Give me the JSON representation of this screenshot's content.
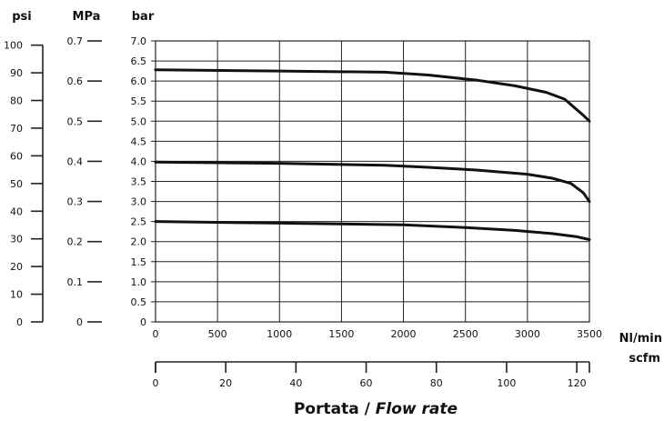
{
  "chart_data": {
    "type": "line",
    "title": "",
    "xlabel": "Portata /",
    "xlabel_italic": "Flow rate",
    "x_unit": "Nl/min",
    "x2_unit": "scfm",
    "y_unit_bar": "bar",
    "y_unit_mpa": "MPa",
    "y_unit_psi": "psi",
    "xlim": [
      0,
      3500
    ],
    "ylim": [
      0,
      7.0
    ],
    "x_ticks": [
      0,
      500,
      1000,
      1500,
      2000,
      2500,
      3000,
      3500
    ],
    "y_ticks": [
      "0",
      "0.5",
      "1.0",
      "1.5",
      "2.0",
      "2.5",
      "3.0",
      "3.5",
      "4.0",
      "4.5",
      "5.0",
      "5.5",
      "6.0",
      "6.5",
      "7.0"
    ],
    "mpa_ticks": [
      "0",
      "0.1",
      "0.2",
      "0.3",
      "0.4",
      "0.5",
      "0.6",
      "0.7"
    ],
    "psi_ticks": [
      "0",
      "10",
      "20",
      "30",
      "40",
      "50",
      "60",
      "70",
      "80",
      "90",
      "100"
    ],
    "scfm_ticks": [
      "0",
      "20",
      "40",
      "60",
      "80",
      "100",
      "120"
    ],
    "grid": true,
    "series": [
      {
        "x": [
          0,
          1000,
          1850,
          2200,
          2600,
          2900,
          3150,
          3300,
          3450,
          3500
        ],
        "y": [
          6.28,
          6.25,
          6.22,
          6.15,
          6.02,
          5.88,
          5.72,
          5.55,
          5.15,
          5.0
        ]
      },
      {
        "x": [
          0,
          1000,
          1850,
          2200,
          2600,
          3000,
          3200,
          3350,
          3450,
          3500
        ],
        "y": [
          3.98,
          3.95,
          3.9,
          3.85,
          3.78,
          3.68,
          3.58,
          3.45,
          3.22,
          3.0
        ]
      },
      {
        "x": [
          0,
          1000,
          2000,
          2500,
          2900,
          3200,
          3400,
          3500
        ],
        "y": [
          2.5,
          2.46,
          2.42,
          2.35,
          2.28,
          2.2,
          2.12,
          2.05
        ]
      }
    ]
  }
}
